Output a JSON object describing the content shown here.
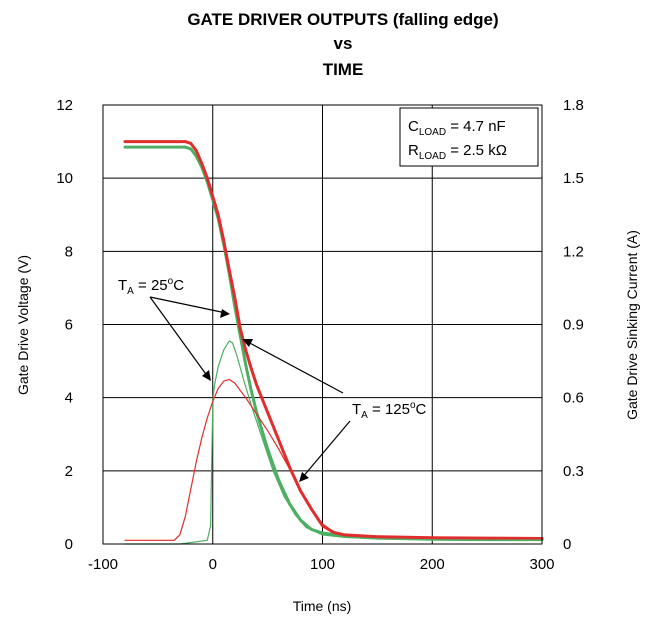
{
  "chart_data": {
    "type": "line",
    "title": [
      "GATE DRIVER OUTPUTS (falling edge)",
      "vs",
      "TIME"
    ],
    "xlabel": "Time (ns)",
    "ylabel_left": "Gate Drive Voltage (V)",
    "ylabel_right": "Gate Drive Sinking Current (A)",
    "xlim": [
      -100,
      300
    ],
    "ylim_left": [
      0,
      12
    ],
    "ylim_right": [
      0,
      1.8
    ],
    "xticks": [
      "-100",
      "0",
      "100",
      "200",
      "300"
    ],
    "yticks_left": [
      "0",
      "2",
      "4",
      "6",
      "8",
      "10",
      "12"
    ],
    "yticks_right": [
      "0",
      "0.3",
      "0.6",
      "0.9",
      "1.2",
      "1.5",
      "1.8"
    ],
    "grid": true,
    "legend_box": {
      "c_load": {
        "main": "C",
        "sub": "LOAD",
        "rest": " = 4.7 nF"
      },
      "r_load": {
        "main": "R",
        "sub": "LOAD",
        "rest": " = 2.5 kΩ"
      }
    },
    "annotations": {
      "ta25": {
        "main": "T",
        "sub": "A",
        "rest": " = 25",
        "sup": "o",
        "end": "C"
      },
      "ta125": {
        "main": "T",
        "sub": "A",
        "rest": " = 125",
        "sup": "o",
        "end": "C"
      }
    },
    "colors": {
      "t25": "#4caf63",
      "t125": "#e02d2d"
    },
    "series": [
      {
        "axis": "left",
        "color": "#4caf63",
        "width": 3,
        "x": [
          -80,
          -25,
          -20,
          -15,
          -10,
          -5,
          0,
          5,
          10,
          15,
          20,
          25,
          30,
          35,
          40,
          50,
          60,
          70,
          80,
          90,
          100,
          120,
          150,
          200,
          250,
          300
        ],
        "y": [
          10.85,
          10.85,
          10.8,
          10.6,
          10.3,
          9.9,
          9.4,
          8.9,
          8.2,
          7.4,
          6.5,
          5.7,
          4.9,
          4.2,
          3.6,
          2.6,
          1.75,
          1.1,
          0.65,
          0.4,
          0.3,
          0.22,
          0.16,
          0.13,
          0.12,
          0.12
        ]
      },
      {
        "axis": "left",
        "color": "#e02d2d",
        "width": 3,
        "x": [
          -80,
          -25,
          -20,
          -15,
          -10,
          -5,
          0,
          5,
          10,
          15,
          20,
          25,
          30,
          35,
          40,
          50,
          60,
          70,
          80,
          90,
          100,
          110,
          120,
          150,
          200,
          250,
          300
        ],
        "y": [
          11.0,
          11.0,
          10.95,
          10.75,
          10.4,
          10.0,
          9.5,
          9.0,
          8.3,
          7.5,
          6.75,
          5.9,
          5.3,
          4.8,
          4.35,
          3.6,
          2.85,
          2.1,
          1.45,
          0.95,
          0.5,
          0.32,
          0.25,
          0.2,
          0.17,
          0.16,
          0.15
        ]
      },
      {
        "axis": "left",
        "color": "#4caf63",
        "width": 1.2,
        "x": [
          -80,
          -30,
          -5,
          -2,
          0,
          1,
          2,
          5,
          10,
          15,
          18,
          22,
          28,
          35,
          45,
          55,
          65,
          75,
          85,
          100,
          120,
          150,
          200,
          250,
          300
        ],
        "y": [
          0,
          0,
          0.1,
          0.5,
          3.9,
          4.2,
          4.4,
          4.85,
          5.3,
          5.55,
          5.5,
          5.15,
          4.5,
          3.8,
          2.9,
          2.0,
          1.3,
          0.8,
          0.45,
          0.25,
          0.18,
          0.14,
          0.12,
          0.12,
          0.12
        ]
      },
      {
        "axis": "left",
        "color": "#e02d2d",
        "width": 1.2,
        "x": [
          -80,
          -35,
          -30,
          -25,
          -20,
          -15,
          -10,
          -5,
          0,
          5,
          10,
          15,
          20,
          25,
          30,
          40,
          50,
          60,
          70,
          80,
          90,
          100,
          110,
          120,
          150,
          200,
          250,
          300
        ],
        "y": [
          0.1,
          0.1,
          0.25,
          0.75,
          1.5,
          2.25,
          2.9,
          3.45,
          3.9,
          4.25,
          4.45,
          4.5,
          4.4,
          4.2,
          4.0,
          3.55,
          3.1,
          2.6,
          2.05,
          1.45,
          0.95,
          0.55,
          0.33,
          0.25,
          0.18,
          0.15,
          0.14,
          0.14
        ]
      }
    ]
  }
}
